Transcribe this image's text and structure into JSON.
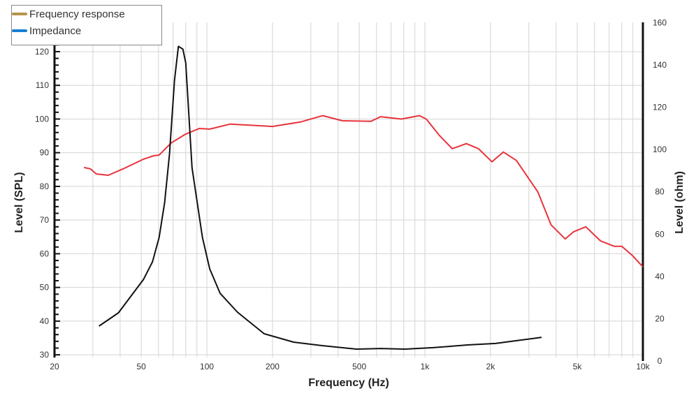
{
  "chart_data": {
    "type": "line",
    "xscale": "log",
    "xlabel": "Frequency (Hz)",
    "ylabel": "Level (SPL)",
    "y2label": "Level (ohm)",
    "xlim": [
      20,
      10000
    ],
    "ylim": [
      29.2,
      128.7
    ],
    "y2lim": [
      0,
      158.5
    ],
    "grid": true,
    "legend_position": "top-left",
    "x_ticks": [
      {
        "v": 20,
        "label": "20"
      },
      {
        "v": 50,
        "label": "50"
      },
      {
        "v": 100,
        "label": "100"
      },
      {
        "v": 200,
        "label": "200"
      },
      {
        "v": 500,
        "label": "500"
      },
      {
        "v": 1000,
        "label": "1k"
      },
      {
        "v": 2000,
        "label": "2k"
      },
      {
        "v": 5000,
        "label": "5k"
      },
      {
        "v": 10000,
        "label": "10k"
      }
    ],
    "y_ticks": [
      30,
      40,
      50,
      60,
      70,
      80,
      90,
      100,
      110,
      120
    ],
    "y2_ticks": [
      0,
      20,
      40,
      60,
      80,
      100,
      120,
      140,
      160
    ],
    "legend": [
      {
        "label": "Frequency response",
        "color": "#b8924a"
      },
      {
        "label": "Impedance",
        "color": "#1a7fd4"
      }
    ],
    "series": [
      {
        "name": "Frequency response",
        "axis": "left",
        "color": "#e8333b",
        "x": [
          27.3,
          29.2,
          31.1,
          35.3,
          42.6,
          51.2,
          57.1,
          60.4,
          68.6,
          79.3,
          92.3,
          103,
          128,
          200,
          268,
          340,
          417,
          565,
          626,
          780,
          944,
          1015,
          1170,
          1335,
          1550,
          1760,
          2030,
          2290,
          2630,
          3300,
          3790,
          4400,
          4800,
          5470,
          6400,
          7400,
          8000,
          8940,
          10000
        ],
        "y": [
          85.6,
          85.2,
          83.7,
          83.3,
          85.6,
          88.1,
          89.1,
          89.3,
          92.9,
          95.4,
          97.2,
          97.0,
          98.5,
          97.8,
          99.1,
          101,
          99.5,
          99.3,
          100.7,
          100,
          101,
          100,
          95,
          91.2,
          92.7,
          91.2,
          87.3,
          90.2,
          87.7,
          78.3,
          68.6,
          64.4,
          66.5,
          68,
          63.8,
          62.2,
          62.2,
          59.5,
          56.1
        ]
      },
      {
        "name": "Impedance",
        "axis": "right",
        "color": "#111111",
        "x": [
          32,
          39.3,
          51.2,
          56.3,
          60.4,
          64,
          67.4,
          71,
          74,
          77.6,
          80,
          85.5,
          95.4,
          103,
          115,
          138,
          183,
          250,
          335,
          485,
          626,
          811,
          1090,
          1570,
          2110,
          2630,
          3430
        ],
        "y": [
          16.5,
          22.8,
          38.6,
          46.9,
          58.4,
          74.9,
          98,
          132.7,
          148.8,
          147.5,
          141,
          91.4,
          58.4,
          43.6,
          32,
          23.1,
          12.9,
          8.9,
          7.3,
          5.6,
          5.9,
          5.6,
          6.3,
          7.6,
          8.3,
          9.6,
          11.2
        ]
      }
    ]
  }
}
